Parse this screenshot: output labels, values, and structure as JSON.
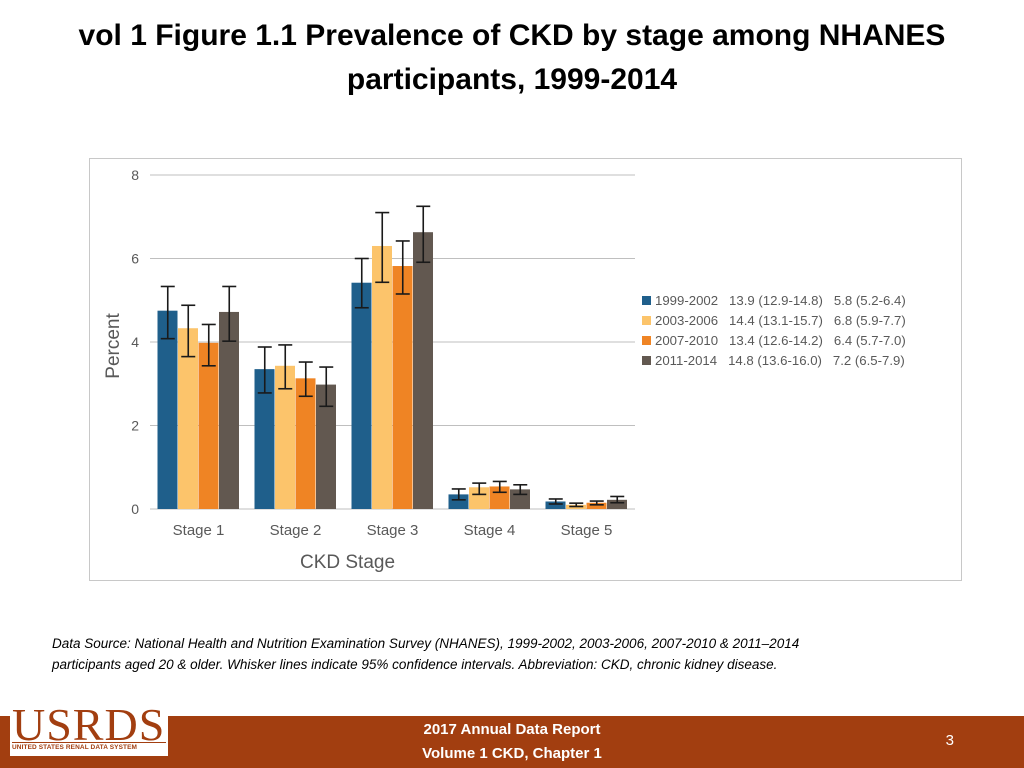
{
  "title_line1": "vol 1 Figure 1.1 Prevalence of CKD by stage among NHANES",
  "title_line2": "participants, 1999-2014",
  "source_line1": "Data Source: National Health and Nutrition Examination Survey (NHANES), 1999-2002, 2003-2006, 2007-2010 & 2011–2014",
  "source_line2": "participants aged 20 & older. Whisker lines indicate 95% confidence intervals. Abbreviation: CKD, chronic kidney disease.",
  "footer": {
    "line1": "2017 Annual Data Report",
    "line2": "Volume 1 CKD, Chapter 1",
    "page_number": "3"
  },
  "logo": {
    "word": "USRDS",
    "subtitle": "UNITED STATES RENAL DATA SYSTEM"
  },
  "colors": {
    "footer": "#a23e10",
    "grid": "#bfbfbf",
    "text": "#595959"
  },
  "chart_data": {
    "type": "bar",
    "title": "",
    "xlabel": "CKD Stage",
    "ylabel": "Percent",
    "ylim": [
      0,
      8
    ],
    "yticks": [
      0,
      2,
      4,
      6,
      8
    ],
    "grid": true,
    "legend_position": "right",
    "categories": [
      "Stage 1",
      "Stage 2",
      "Stage 3",
      "Stage 4",
      "Stage 5"
    ],
    "series": [
      {
        "name": "1999-2002",
        "legend_label": "1999-2002   13.9 (12.9-14.8)   5.8 (5.2-6.4)",
        "color": "#1f5f8b",
        "values": [
          4.75,
          3.35,
          5.42,
          0.35,
          0.18
        ],
        "ci_low": [
          4.08,
          2.78,
          4.82,
          0.22,
          0.12
        ],
        "ci_high": [
          5.33,
          3.88,
          6.0,
          0.48,
          0.24
        ]
      },
      {
        "name": "2003-2006",
        "legend_label": "2003-2006   14.4 (13.1-15.7)   6.8 (5.9-7.7)",
        "color": "#fcc46b",
        "values": [
          4.33,
          3.43,
          6.3,
          0.52,
          0.1
        ],
        "ci_low": [
          3.65,
          2.88,
          5.43,
          0.35,
          0.06
        ],
        "ci_high": [
          4.88,
          3.93,
          7.1,
          0.62,
          0.14
        ]
      },
      {
        "name": "2007-2010",
        "legend_label": "2007-2010   13.4 (12.6-14.2)   6.4 (5.7-7.0)",
        "color": "#ef8424",
        "values": [
          3.98,
          3.13,
          5.82,
          0.54,
          0.15
        ],
        "ci_low": [
          3.43,
          2.7,
          5.15,
          0.4,
          0.1
        ],
        "ci_high": [
          4.42,
          3.52,
          6.42,
          0.66,
          0.19
        ]
      },
      {
        "name": "2011-2014",
        "legend_label": "2011-2014   14.8 (13.6-16.0)   7.2 (6.5-7.9)",
        "color": "#625850",
        "values": [
          4.72,
          2.98,
          6.63,
          0.47,
          0.22
        ],
        "ci_low": [
          4.02,
          2.46,
          5.91,
          0.35,
          0.15
        ],
        "ci_high": [
          5.33,
          3.4,
          7.25,
          0.58,
          0.3
        ]
      }
    ]
  }
}
